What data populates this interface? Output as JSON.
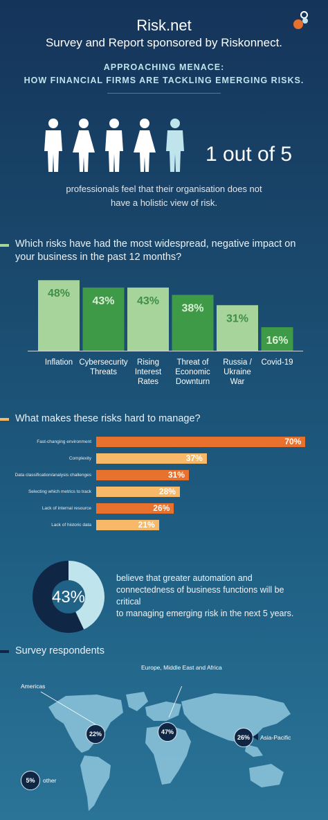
{
  "header": {
    "title": "Risk.net",
    "subtitle": "Survey and Report sponsored by Riskonnect.",
    "headline_line1": "APPROACHING MENACE:",
    "headline_line2": "HOW FINANCIAL FIRMS ARE TACKLING EMERGING RISKS."
  },
  "stat": {
    "big": "1 out of 5",
    "desc_line1": "professionals feel that their organisation does not",
    "desc_line2": "have a holistic view of risk.",
    "highlight_color": "#bfe4ec",
    "people_color": "#ffffff"
  },
  "colors": {
    "light_green": "#a6d49a",
    "dark_green": "#3f9a48",
    "orange_dark": "#e8712d",
    "orange_light": "#f7b868",
    "dark_navy": "#0f2745",
    "light_blue": "#bfe4ec"
  },
  "chart_data": [
    {
      "type": "bar",
      "title_line1": "Which risks have had the most widespread, negative impact on",
      "title_line2": "your business in the past 12 months?",
      "categories": [
        "Inflation",
        "Cybersecurity Threats",
        "Rising Interest Rates",
        "Threat of Economic Downturn",
        "Russia / Ukraine War",
        "Covid-19"
      ],
      "category_lines": [
        [
          "Inflation"
        ],
        [
          "Cybersecurity",
          "Threats"
        ],
        [
          "Rising",
          "Interest",
          "Rates"
        ],
        [
          "Threat of",
          "Economic",
          "Downturn"
        ],
        [
          "Russia /",
          "Ukraine",
          "War"
        ],
        [
          "Covid-19"
        ]
      ],
      "values": [
        48,
        43,
        43,
        38,
        31,
        16
      ],
      "value_labels": [
        "48%",
        "43%",
        "43%",
        "38%",
        "31%",
        "16%"
      ],
      "ylim": [
        0,
        50
      ]
    },
    {
      "type": "bar",
      "orientation": "horizontal",
      "title": "What makes these risks hard to manage?",
      "categories": [
        "Fast-changing environment",
        "Complexity",
        "Data classification/analysis challenges",
        "Selecting which metrics to track",
        "Lack of internal resource",
        "Lack of historic data"
      ],
      "values": [
        70,
        37,
        31,
        28,
        26,
        21
      ],
      "value_labels": [
        "70%",
        "37%",
        "31%",
        "28%",
        "26%",
        "21%"
      ],
      "xlim": [
        0,
        72
      ]
    },
    {
      "type": "pie",
      "value": 43,
      "value_label": "43%",
      "desc_line1": "believe that greater automation and",
      "desc_line2": "connectedness of business functions will be critical",
      "desc_line3": "to managing emerging risk in the next 5 years."
    }
  ],
  "respondents": {
    "title": "Survey respondents",
    "regions": [
      {
        "name": "Americas",
        "value": "22%"
      },
      {
        "name": "Europe, Middle East and Africa",
        "value": "47%"
      },
      {
        "name": "Asia-Pacific",
        "value": "26%"
      },
      {
        "name": "other",
        "value": "5%"
      }
    ]
  }
}
